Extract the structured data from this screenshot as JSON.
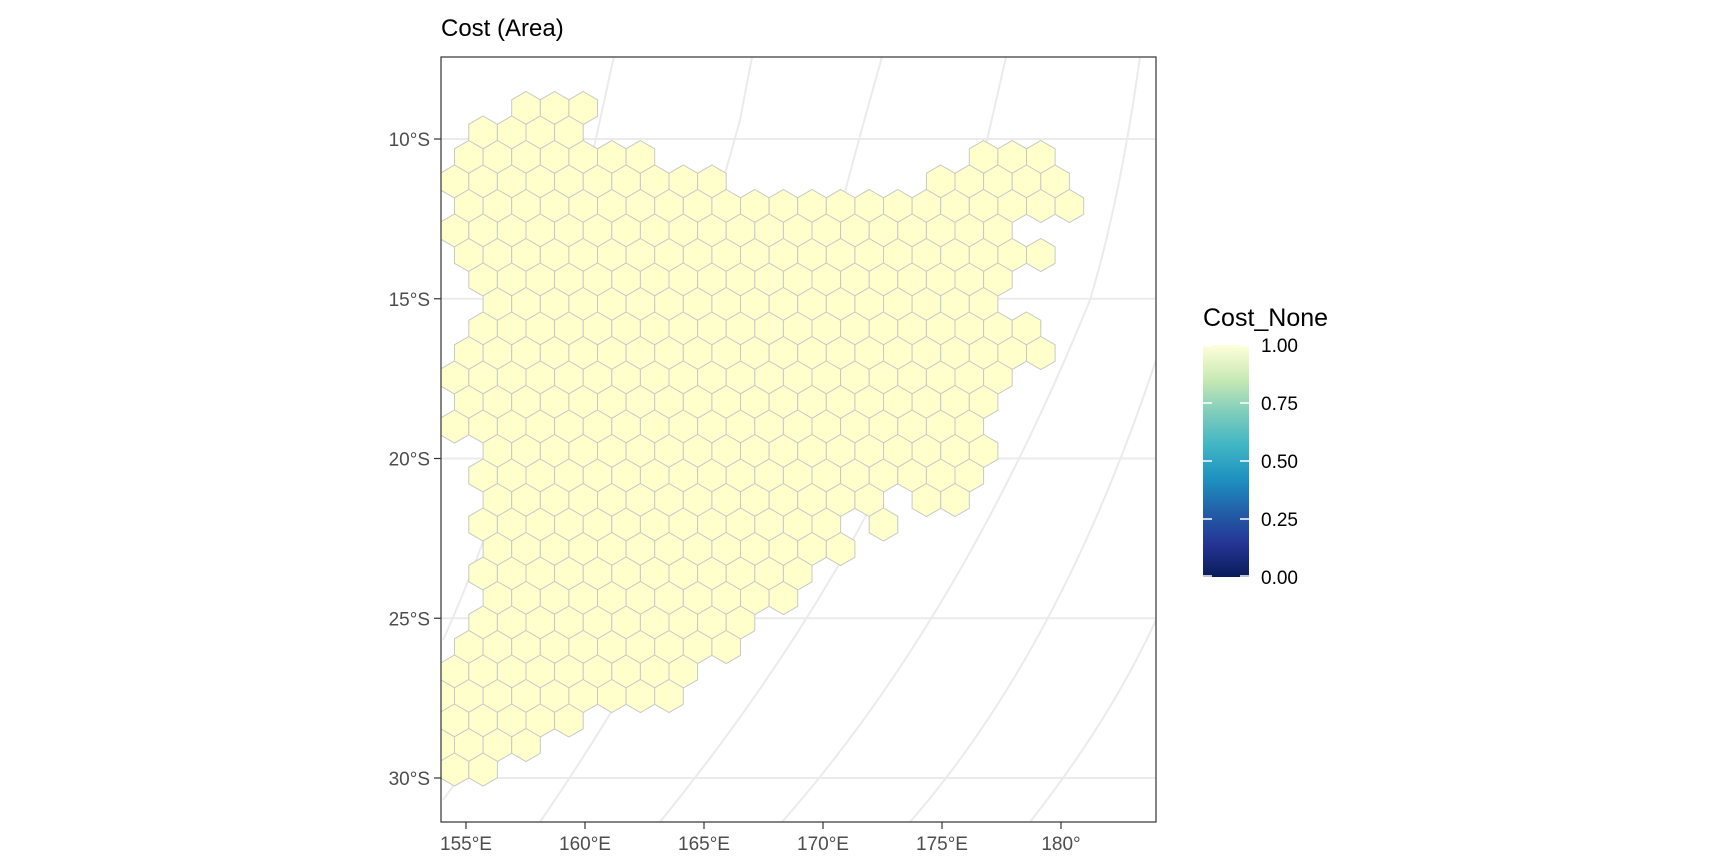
{
  "title": "Cost (Area)",
  "map": {
    "y_ticks": [
      {
        "label": "10°S",
        "lat": 10
      },
      {
        "label": "15°S",
        "lat": 15
      },
      {
        "label": "20°S",
        "lat": 20
      },
      {
        "label": "25°S",
        "lat": 25
      },
      {
        "label": "30°S",
        "lat": 30
      }
    ],
    "x_ticks": [
      {
        "label": "155°E",
        "lon": 155
      },
      {
        "label": "160°E",
        "lon": 160
      },
      {
        "label": "165°E",
        "lon": 165
      },
      {
        "label": "170°E",
        "lon": 170
      },
      {
        "label": "175°E",
        "lon": 175
      },
      {
        "label": "180°",
        "lon": 180
      }
    ],
    "lat_range": [
      7.5,
      31.5
    ],
    "lon_range": [
      154.2,
      184.1
    ],
    "graticule": true,
    "panel_border": true,
    "hex_fill_value": 1.0,
    "hex_fill_color": "#ffffcc",
    "hex_stroke_color": "#c8c8c8",
    "grid_color": "#ebebeb"
  },
  "legend": {
    "title": "Cost_None",
    "position": "right",
    "labels": [
      "1.00",
      "0.75",
      "0.50",
      "0.25",
      "0.00"
    ],
    "values": [
      1.0,
      0.75,
      0.5,
      0.25,
      0.0
    ],
    "gradient_colors": [
      "#081d58",
      "#225ea8",
      "#1d91c0",
      "#41b6c4",
      "#7fcdbb",
      "#c7e9b4",
      "#edf8b1",
      "#ffffd9"
    ]
  },
  "chart_data": {
    "type": "heatmap",
    "title": "Cost (Area)",
    "fill_variable": "Cost_None",
    "all_cells_value": 1.0,
    "x_axis_ticks": [
      "155°E",
      "160°E",
      "165°E",
      "170°E",
      "175°E",
      "180°"
    ],
    "y_axis_ticks": [
      "10°S",
      "15°S",
      "20°S",
      "25°S",
      "30°S"
    ],
    "color_scale_range": [
      0,
      1
    ],
    "legend_breaks": [
      "1.00",
      "0.75",
      "0.50",
      "0.25",
      "0.00"
    ]
  }
}
